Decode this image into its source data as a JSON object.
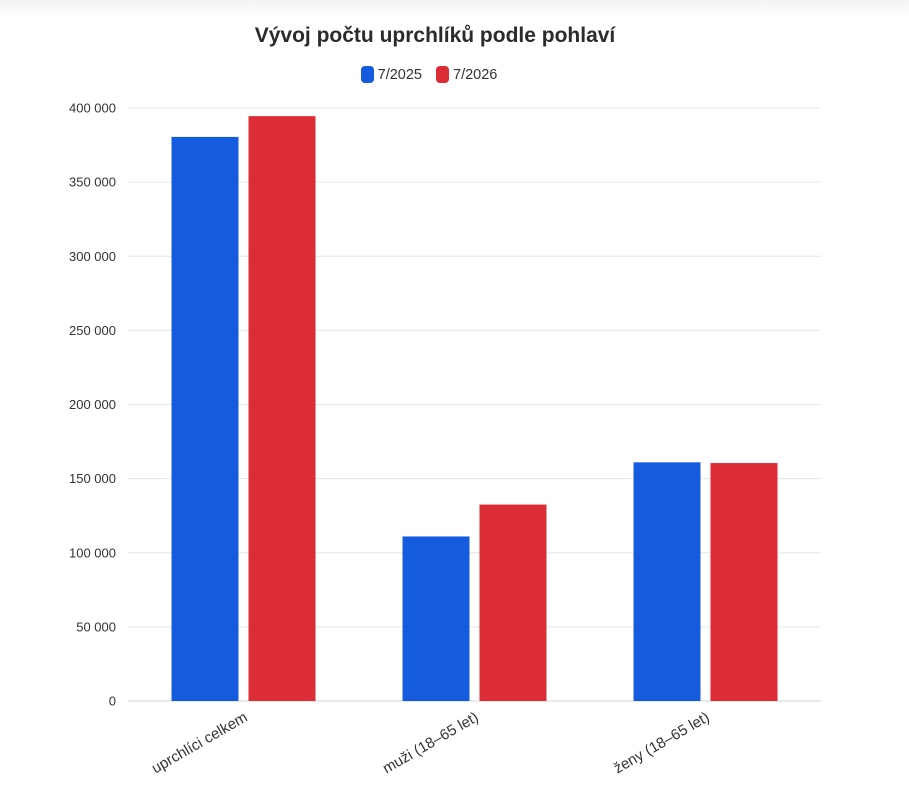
{
  "chart_data": {
    "type": "bar",
    "title": "Vývoj počtu uprchlíků podle pohlaví",
    "xlabel": "",
    "ylabel": "",
    "categories": [
      "uprchlíci celkem",
      "muži (18–65 let)",
      "ženy (18–65 let)"
    ],
    "series": [
      {
        "name": "7/2025",
        "color": "#155bde",
        "values": [
          380500,
          111000,
          161000
        ]
      },
      {
        "name": "7/2026",
        "color": "#dc2d36",
        "values": [
          394500,
          132500,
          160500
        ]
      }
    ],
    "ylim": [
      0,
      400000
    ],
    "yticks": [
      0,
      50000,
      100000,
      150000,
      200000,
      250000,
      300000,
      350000,
      400000
    ],
    "ytick_labels": [
      "0",
      "50 000",
      "100 000",
      "150 000",
      "200 000",
      "250 000",
      "300 000",
      "350 000",
      "400 000"
    ],
    "grid": true,
    "legend_position": "top-center"
  }
}
